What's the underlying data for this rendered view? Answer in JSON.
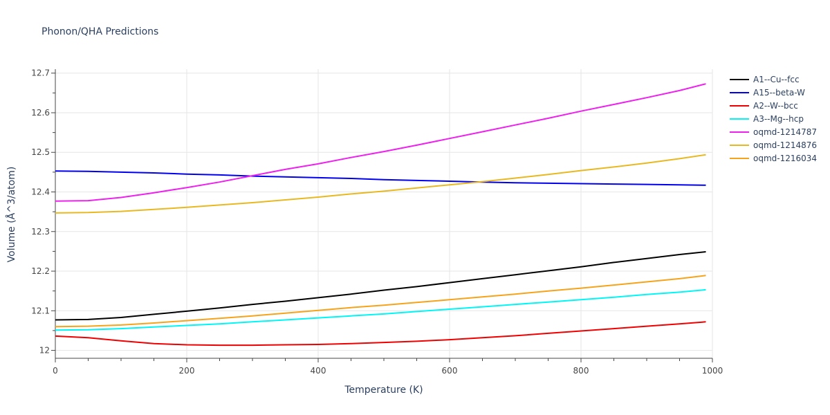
{
  "chart_data": {
    "type": "line",
    "title": "Phonon/QHA Predictions",
    "xlabel": "Temperature (K)",
    "ylabel": "Volume (Å^3/atom)",
    "xlim": [
      0,
      1000
    ],
    "ylim": [
      11.98,
      12.71
    ],
    "xticks": [
      0,
      200,
      400,
      600,
      800,
      1000
    ],
    "xtick_labels": [
      "0",
      "200",
      "400",
      "600",
      "800",
      "1000"
    ],
    "yticks": [
      12.0,
      12.1,
      12.2,
      12.3,
      12.4,
      12.5,
      12.6,
      12.7
    ],
    "ytick_labels": [
      "12",
      "12.1",
      "12.2",
      "12.3",
      "12.4",
      "12.5",
      "12.6",
      "12.7"
    ],
    "grid": true,
    "legend_position": "right",
    "x": [
      0,
      50,
      100,
      150,
      200,
      250,
      300,
      350,
      400,
      450,
      500,
      550,
      600,
      650,
      700,
      750,
      800,
      850,
      900,
      950,
      990
    ],
    "series": [
      {
        "name": "A1--Cu--fcc",
        "color": "#000000",
        "values": [
          12.077,
          12.078,
          12.083,
          12.091,
          12.099,
          12.107,
          12.116,
          12.124,
          12.133,
          12.142,
          12.152,
          12.161,
          12.171,
          12.181,
          12.191,
          12.201,
          12.211,
          12.222,
          12.232,
          12.242,
          12.249
        ]
      },
      {
        "name": "A15--beta-W",
        "color": "#0000ee",
        "values": [
          12.453,
          12.452,
          12.45,
          12.448,
          12.445,
          12.443,
          12.44,
          12.438,
          12.436,
          12.434,
          12.431,
          12.429,
          12.427,
          12.425,
          12.423,
          12.422,
          12.421,
          12.42,
          12.419,
          12.418,
          12.417
        ]
      },
      {
        "name": "A2--W--bcc",
        "color": "#ee0000",
        "values": [
          12.036,
          12.032,
          12.024,
          12.017,
          12.014,
          12.013,
          12.013,
          12.014,
          12.015,
          12.017,
          12.02,
          12.023,
          12.027,
          12.032,
          12.037,
          12.043,
          12.049,
          12.055,
          12.061,
          12.067,
          12.072
        ]
      },
      {
        "name": "A3--Mg--hcp",
        "color": "#00f5f5",
        "values": [
          12.051,
          12.052,
          12.055,
          12.059,
          12.063,
          12.067,
          12.072,
          12.077,
          12.082,
          12.087,
          12.092,
          12.098,
          12.104,
          12.11,
          12.116,
          12.122,
          12.128,
          12.134,
          12.141,
          12.147,
          12.153
        ]
      },
      {
        "name": "oqmd-1214787",
        "color": "#ee20ee",
        "values": [
          12.377,
          12.378,
          12.386,
          12.398,
          12.411,
          12.425,
          12.441,
          12.457,
          12.471,
          12.487,
          12.502,
          12.518,
          12.535,
          12.552,
          12.569,
          12.586,
          12.604,
          12.621,
          12.638,
          12.656,
          12.673
        ]
      },
      {
        "name": "oqmd-1214876",
        "color": "#e8b820",
        "values": [
          12.347,
          12.348,
          12.351,
          12.356,
          12.361,
          12.367,
          12.373,
          12.38,
          12.387,
          12.395,
          12.402,
          12.41,
          12.418,
          12.426,
          12.435,
          12.444,
          12.454,
          12.463,
          12.473,
          12.484,
          12.494
        ]
      },
      {
        "name": "oqmd-1216034",
        "color": "#f5a31a",
        "values": [
          12.06,
          12.061,
          12.064,
          12.069,
          12.075,
          12.081,
          12.087,
          12.094,
          12.101,
          12.108,
          12.114,
          12.121,
          12.128,
          12.135,
          12.142,
          12.15,
          12.157,
          12.165,
          12.173,
          12.181,
          12.189
        ]
      }
    ]
  }
}
